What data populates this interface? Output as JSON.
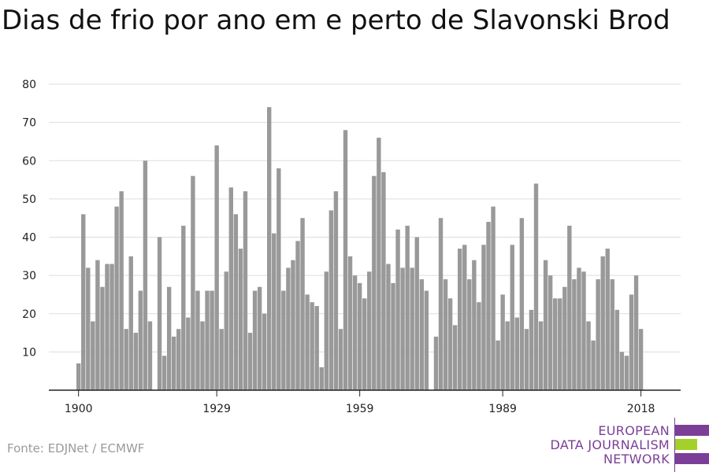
{
  "title": "Dias de frio por ano em e perto de Slavonski Brod",
  "source": "Fonte: EDJNet / ECMWF",
  "logo": {
    "lines": [
      "EUROPEAN",
      "DATA JOURNALISM",
      "NETWORK"
    ],
    "colors": {
      "purple": "#7b3f98",
      "green": "#a3d12a"
    }
  },
  "colors": {
    "bar": "#999999",
    "grid": "#dddddd",
    "axis": "#222222"
  },
  "chart_data": {
    "type": "bar",
    "title": "Dias de frio por ano em e perto de Slavonski Brod",
    "xlabel": "",
    "ylabel": "",
    "ylim": [
      0,
      80
    ],
    "yticks": [
      10,
      20,
      30,
      40,
      50,
      60,
      70,
      80
    ],
    "xticks": [
      1900,
      1929,
      1959,
      1989,
      2018
    ],
    "grid": true,
    "start_year": 1900,
    "values": [
      7,
      46,
      32,
      18,
      34,
      27,
      33,
      33,
      48,
      52,
      16,
      35,
      15,
      26,
      60,
      18,
      0,
      40,
      9,
      27,
      14,
      16,
      43,
      19,
      56,
      26,
      18,
      26,
      26,
      64,
      16,
      31,
      53,
      46,
      37,
      52,
      15,
      26,
      27,
      20,
      74,
      41,
      58,
      26,
      32,
      34,
      39,
      45,
      25,
      23,
      22,
      6,
      31,
      47,
      52,
      16,
      68,
      35,
      30,
      28,
      24,
      31,
      56,
      66,
      57,
      33,
      28,
      42,
      32,
      43,
      32,
      40,
      29,
      26,
      0,
      14,
      45,
      29,
      24,
      17,
      37,
      38,
      29,
      34,
      23,
      38,
      44,
      48,
      13,
      25,
      18,
      38,
      19,
      45,
      16,
      21,
      54,
      18,
      34,
      30,
      24,
      24,
      27,
      43,
      29,
      32,
      31,
      18,
      13,
      29,
      35,
      37,
      29,
      21,
      10,
      9,
      25,
      30,
      16
    ]
  }
}
